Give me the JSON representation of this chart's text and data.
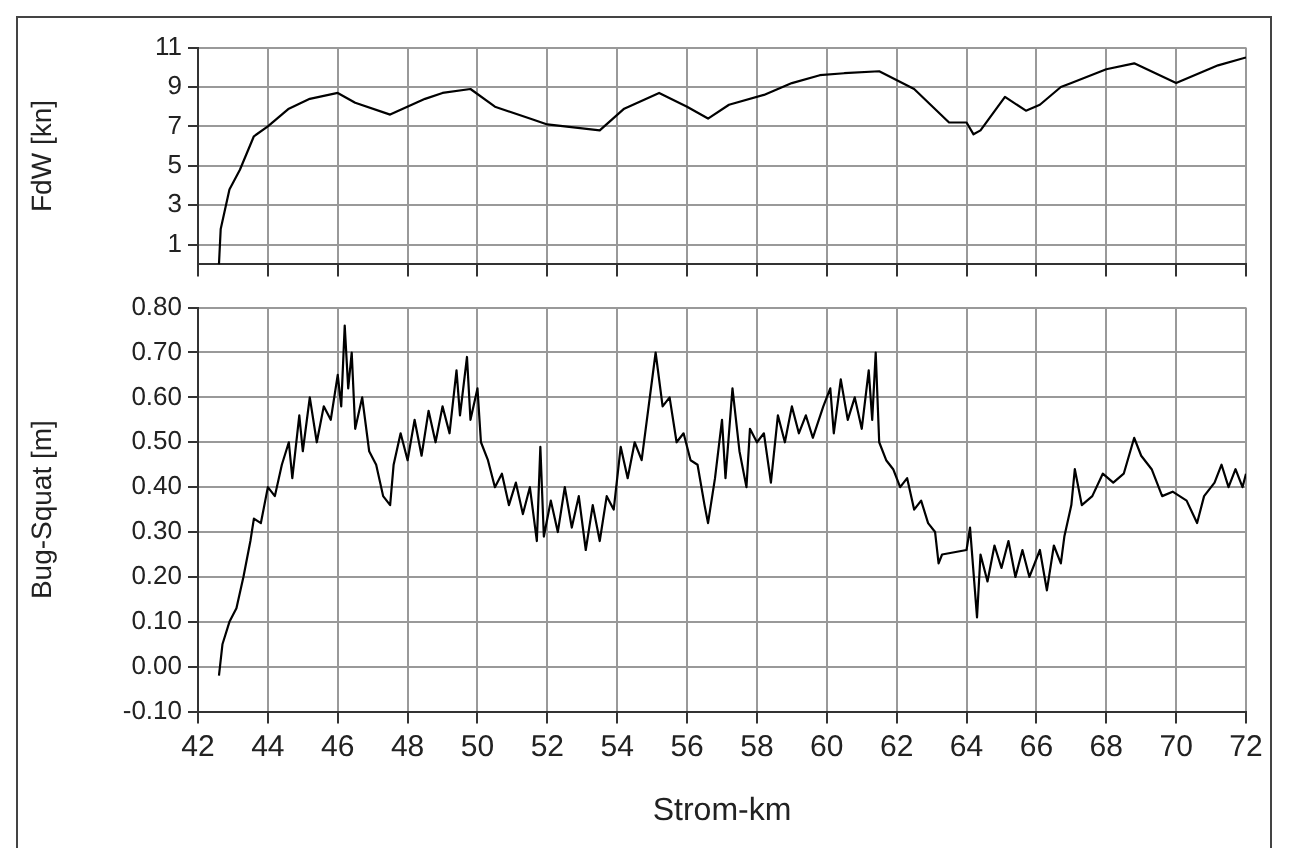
{
  "chart_data": [
    {
      "type": "line",
      "ylabel": "FdW [kn]",
      "xlim": [
        42,
        72
      ],
      "xticks": [
        42,
        44,
        46,
        48,
        50,
        52,
        54,
        56,
        58,
        60,
        62,
        64,
        66,
        68,
        70,
        72
      ],
      "ylim": [
        0,
        11
      ],
      "yticks": [
        1,
        3,
        5,
        7,
        9,
        11
      ],
      "grid": true,
      "tick_labels": "y",
      "legend": false,
      "marker": "none",
      "series": [
        {
          "color": "#000000",
          "x": [
            42.6,
            42.65,
            42.9,
            43.2,
            43.6,
            44,
            44.6,
            45.2,
            46,
            46.5,
            47.5,
            48.5,
            49,
            49.8,
            50.5,
            51.5,
            52,
            53,
            53.5,
            54.2,
            55.2,
            56,
            56.6,
            57.2,
            58.2,
            59,
            59.8,
            60.5,
            61.5,
            62.5,
            63.5,
            64,
            64.2,
            64.4,
            65.1,
            65.7,
            66.1,
            66.7,
            67,
            68,
            68.8,
            70,
            71.2,
            72
          ],
          "values": [
            0,
            1.8,
            3.8,
            4.8,
            6.5,
            7,
            7.9,
            8.4,
            8.7,
            8.2,
            7.6,
            8.4,
            8.7,
            8.9,
            8,
            7.4,
            7.1,
            6.9,
            6.8,
            7.9,
            8.7,
            8,
            7.4,
            8.1,
            8.6,
            9.2,
            9.6,
            9.7,
            9.8,
            8.9,
            7.2,
            7.2,
            6.6,
            6.8,
            8.5,
            7.8,
            8.1,
            9,
            9.2,
            9.9,
            10.2,
            9.2,
            10.1,
            10.5
          ]
        }
      ]
    },
    {
      "type": "line",
      "xlabel": "Strom-km",
      "ylabel": "Bug-Squat [m]",
      "xlim": [
        42,
        72
      ],
      "xticks": [
        42,
        44,
        46,
        48,
        50,
        52,
        54,
        56,
        58,
        60,
        62,
        64,
        66,
        68,
        70,
        72
      ],
      "ylim": [
        -0.1,
        0.8
      ],
      "yticks": [
        {
          "value": -0.1,
          "label": "-0.10"
        },
        {
          "value": 0,
          "label": "0.00"
        },
        {
          "value": 0.1,
          "label": "0.10"
        },
        {
          "value": 0.2,
          "label": "0.20"
        },
        {
          "value": 0.3,
          "label": "0.30"
        },
        {
          "value": 0.4,
          "label": "0.40"
        },
        {
          "value": 0.5,
          "label": "0.50"
        },
        {
          "value": 0.6,
          "label": "0.60"
        },
        {
          "value": 0.7,
          "label": "0.70"
        },
        {
          "value": 0.8,
          "label": "0.80"
        }
      ],
      "grid": true,
      "legend": false,
      "marker": "none",
      "series": [
        {
          "color": "#000000",
          "x": [
            42.6,
            42.7,
            42.9,
            43.1,
            43.3,
            43.5,
            43.6,
            43.8,
            44,
            44.2,
            44.4,
            44.6,
            44.7,
            44.9,
            45,
            45.2,
            45.4,
            45.6,
            45.8,
            46,
            46.1,
            46.2,
            46.3,
            46.4,
            46.5,
            46.7,
            46.9,
            47.1,
            47.3,
            47.5,
            47.6,
            47.8,
            48,
            48.2,
            48.4,
            48.6,
            48.8,
            49,
            49.2,
            49.4,
            49.5,
            49.7,
            49.8,
            50,
            50.1,
            50.3,
            50.5,
            50.7,
            50.9,
            51.1,
            51.3,
            51.5,
            51.7,
            51.8,
            51.9,
            52.1,
            52.3,
            52.5,
            52.7,
            52.9,
            53.1,
            53.3,
            53.5,
            53.7,
            53.9,
            54.1,
            54.3,
            54.5,
            54.7,
            54.9,
            55.1,
            55.3,
            55.5,
            55.7,
            55.9,
            56.1,
            56.3,
            56.5,
            56.6,
            56.8,
            57,
            57.1,
            57.3,
            57.5,
            57.7,
            57.8,
            58,
            58.2,
            58.4,
            58.6,
            58.8,
            59,
            59.2,
            59.4,
            59.6,
            59.9,
            60.1,
            60.2,
            60.4,
            60.6,
            60.8,
            61,
            61.2,
            61.3,
            61.4,
            61.5,
            61.7,
            61.9,
            62.1,
            62.3,
            62.5,
            62.7,
            62.9,
            63.1,
            63.2,
            63.3,
            64,
            64.1,
            64.3,
            64.4,
            64.6,
            64.8,
            65,
            65.2,
            65.4,
            65.6,
            65.8,
            66.1,
            66.3,
            66.5,
            66.7,
            66.8,
            67,
            67.1,
            67.3,
            67.6,
            67.9,
            68.2,
            68.5,
            68.8,
            69,
            69.3,
            69.6,
            69.9,
            70.3,
            70.6,
            70.8,
            71.1,
            71.3,
            71.5,
            71.7,
            71.9,
            72
          ],
          "values": [
            -0.02,
            0.05,
            0.1,
            0.13,
            0.2,
            0.28,
            0.33,
            0.32,
            0.4,
            0.38,
            0.45,
            0.5,
            0.42,
            0.56,
            0.48,
            0.6,
            0.5,
            0.58,
            0.55,
            0.65,
            0.58,
            0.76,
            0.62,
            0.7,
            0.53,
            0.6,
            0.48,
            0.45,
            0.38,
            0.36,
            0.45,
            0.52,
            0.46,
            0.55,
            0.47,
            0.57,
            0.5,
            0.58,
            0.52,
            0.66,
            0.56,
            0.69,
            0.55,
            0.62,
            0.5,
            0.46,
            0.4,
            0.43,
            0.36,
            0.41,
            0.34,
            0.4,
            0.28,
            0.49,
            0.29,
            0.37,
            0.3,
            0.4,
            0.31,
            0.38,
            0.26,
            0.36,
            0.28,
            0.38,
            0.35,
            0.49,
            0.42,
            0.5,
            0.46,
            0.58,
            0.7,
            0.58,
            0.6,
            0.5,
            0.52,
            0.46,
            0.45,
            0.36,
            0.32,
            0.42,
            0.55,
            0.42,
            0.62,
            0.48,
            0.4,
            0.53,
            0.5,
            0.52,
            0.41,
            0.56,
            0.5,
            0.58,
            0.52,
            0.56,
            0.51,
            0.58,
            0.62,
            0.52,
            0.64,
            0.55,
            0.6,
            0.53,
            0.66,
            0.55,
            0.7,
            0.5,
            0.46,
            0.44,
            0.4,
            0.42,
            0.35,
            0.37,
            0.32,
            0.3,
            0.23,
            0.25,
            0.26,
            0.31,
            0.11,
            0.25,
            0.19,
            0.27,
            0.22,
            0.28,
            0.2,
            0.26,
            0.2,
            0.26,
            0.17,
            0.27,
            0.23,
            0.29,
            0.36,
            0.44,
            0.36,
            0.38,
            0.43,
            0.41,
            0.43,
            0.51,
            0.47,
            0.44,
            0.38,
            0.39,
            0.37,
            0.32,
            0.38,
            0.41,
            0.45,
            0.4,
            0.44,
            0.4,
            0.43
          ]
        }
      ]
    }
  ]
}
